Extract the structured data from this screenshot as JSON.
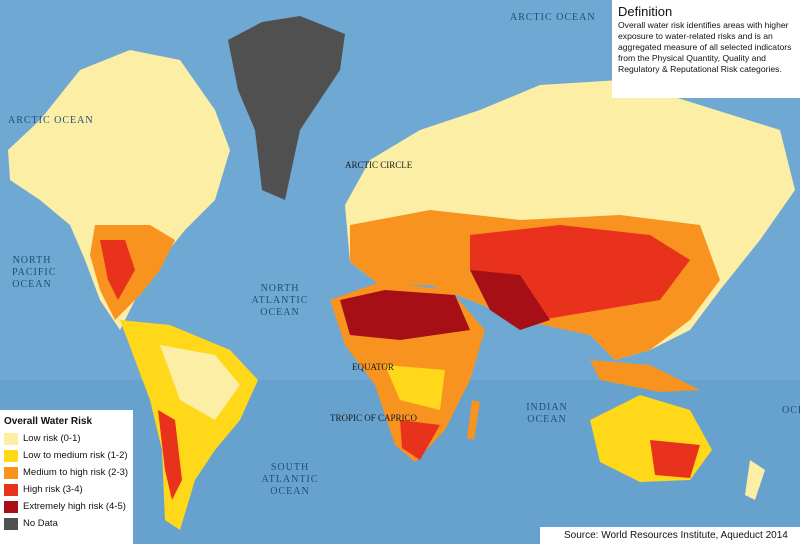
{
  "colors": {
    "ocean": "#6fa8d2",
    "low": "#fdeea6",
    "low_medium": "#ffd81a",
    "medium_high": "#f7931e",
    "high": "#e8321c",
    "extremely_high": "#a50f15",
    "no_data": "#505050"
  },
  "definition": {
    "title": "Definition",
    "text": "Overall water risk identifies areas with higher exposure to water-related risks and is an aggregated measure of all selected indicators from the Physical Quantity, Quality and Regulatory & Reputational Risk categories."
  },
  "legend": {
    "title": "Overall Water Risk",
    "items": [
      {
        "label": "Low risk (0-1)",
        "color": "#fdeea6"
      },
      {
        "label": "Low to medium risk (1-2)",
        "color": "#ffd81a"
      },
      {
        "label": "Medium to high risk (2-3)",
        "color": "#f7931e"
      },
      {
        "label": "High risk (3-4)",
        "color": "#e8321c"
      },
      {
        "label": "Extremely high risk (4-5)",
        "color": "#a50f15"
      },
      {
        "label": "No Data",
        "color": "#505050"
      }
    ]
  },
  "labels": {
    "arctic_ocean_left": "ARCTIC OCEAN",
    "arctic_ocean_top": "ARCTIC OCEAN",
    "arctic_circle": "ARCTIC CIRCLE",
    "north_pacific": "NORTH PACIFIC OCEAN",
    "north_atlantic": "NORTH ATLANTIC OCEAN",
    "equator": "EQUATOR",
    "tropic": "TROPIC OF CAPRICO",
    "indian": "INDIAN OCEAN",
    "south_atlantic": "SOUTH ATLANTIC OCEAN",
    "oce_right": "OCE"
  },
  "source": "Source: World Resources Institute, Aqueduct 2014"
}
